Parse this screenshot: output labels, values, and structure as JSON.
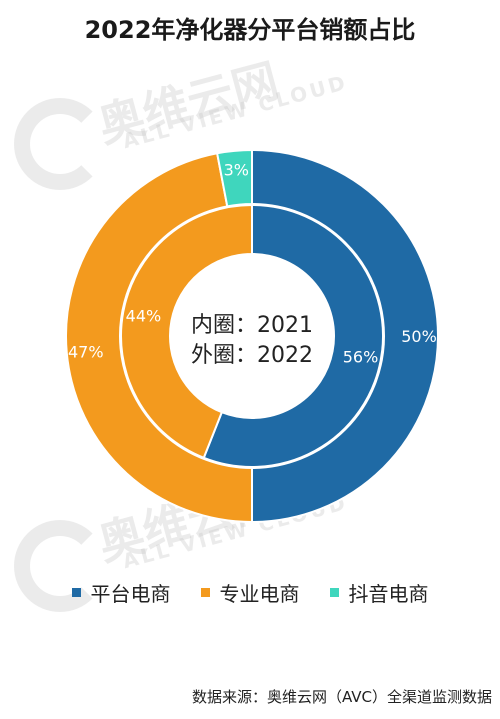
{
  "title": "2022年净化器分平台销额占比",
  "center_label": {
    "line1": "内圈：2021",
    "line2": "外圈：2022"
  },
  "watermark": {
    "brand_cn": "奥维云网",
    "brand_en": "ALL VIEW CLOUD"
  },
  "source": "数据来源：奥维云网（AVC）全渠道监测数据",
  "chart_data": {
    "type": "donut",
    "title": "2022年净化器分平台销额占比",
    "categories": [
      "平台电商",
      "专业电商",
      "抖音电商"
    ],
    "colors": [
      "#1f6aa5",
      "#f39a1e",
      "#3fd6bd"
    ],
    "rings": [
      {
        "name": "2021",
        "position": "inner",
        "values": [
          56,
          44,
          0
        ],
        "labels": [
          "56%",
          "44%",
          ""
        ]
      },
      {
        "name": "2022",
        "position": "outer",
        "values": [
          50,
          47,
          3
        ],
        "labels": [
          "50%",
          "47%",
          "3%"
        ]
      }
    ],
    "legend_position": "bottom"
  }
}
